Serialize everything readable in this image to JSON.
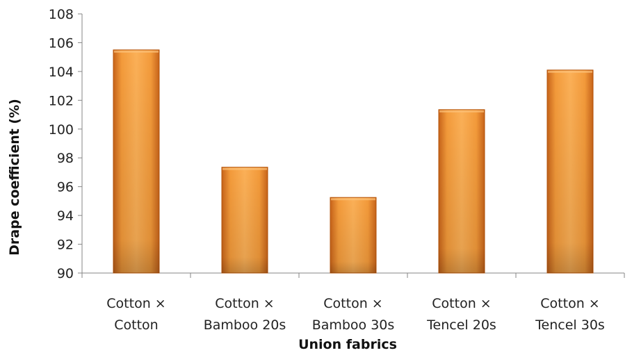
{
  "chart_data": {
    "type": "bar",
    "categories": [
      [
        "Cotton ×",
        "Cotton"
      ],
      [
        "Cotton ×",
        "Bamboo 20s"
      ],
      [
        "Cotton ×",
        "Bamboo 30s"
      ],
      [
        "Cotton ×",
        "Tencel 20s"
      ],
      [
        "Cotton ×",
        "Tencel 30s"
      ]
    ],
    "values": [
      105.5,
      97.35,
      95.25,
      101.35,
      104.1
    ],
    "xlabel": "Union fabrics",
    "ylabel": "Drape coefficient (%)",
    "ylim": [
      90,
      108
    ],
    "yticks": [
      90,
      92,
      94,
      96,
      98,
      100,
      102,
      104,
      106,
      108
    ],
    "grid": false,
    "bar_color": "#f7941d",
    "bar_edge_color": "#b45309"
  }
}
